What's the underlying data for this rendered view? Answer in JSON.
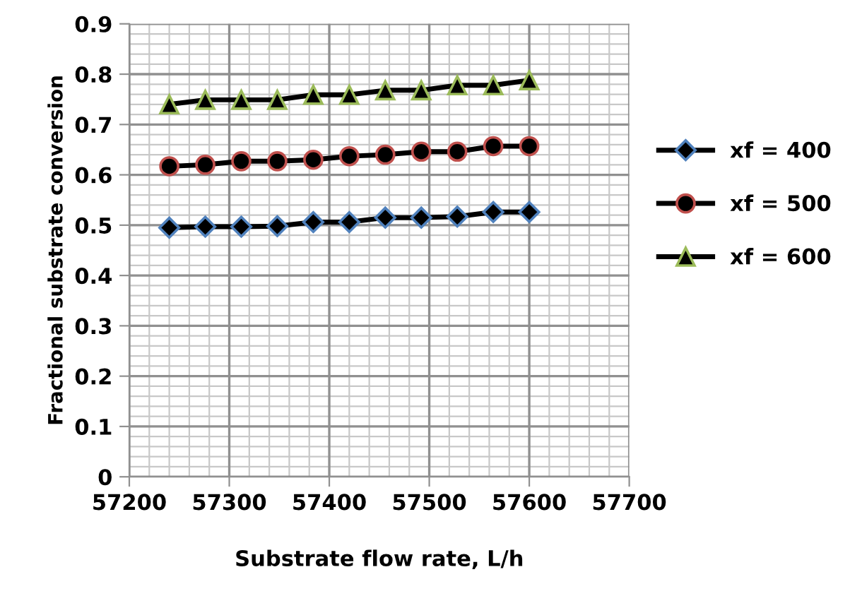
{
  "chart_data": {
    "type": "line",
    "xlabel": "Substrate flow rate, L/h",
    "ylabel": "Fractional substrate conversion",
    "x": [
      57240,
      57276,
      57312,
      57348,
      57384,
      57420,
      57456,
      57492,
      57528,
      57564,
      57600
    ],
    "series": [
      {
        "name": "xf = 400",
        "color": "#4f81bd",
        "marker": "diamond",
        "values": [
          0.495,
          0.497,
          0.497,
          0.498,
          0.506,
          0.506,
          0.515,
          0.515,
          0.517,
          0.526,
          0.526
        ]
      },
      {
        "name": "xf = 500",
        "color": "#c0504d",
        "marker": "circle",
        "values": [
          0.617,
          0.62,
          0.627,
          0.627,
          0.63,
          0.637,
          0.64,
          0.646,
          0.646,
          0.657,
          0.657
        ]
      },
      {
        "name": "xf = 600",
        "color": "#9bbb59",
        "marker": "triangle",
        "values": [
          0.74,
          0.749,
          0.749,
          0.749,
          0.759,
          0.759,
          0.768,
          0.768,
          0.778,
          0.778,
          0.788
        ]
      }
    ],
    "xlim": [
      57200,
      57700
    ],
    "xticks": [
      57200,
      57300,
      57400,
      57500,
      57600,
      57700
    ],
    "ylim": [
      0,
      0.9
    ],
    "yticks": [
      0,
      0.1,
      0.2,
      0.3,
      0.4,
      0.5,
      0.6,
      0.7,
      0.8,
      0.9
    ],
    "grid": true,
    "legend": "right",
    "line_style": "solid"
  }
}
